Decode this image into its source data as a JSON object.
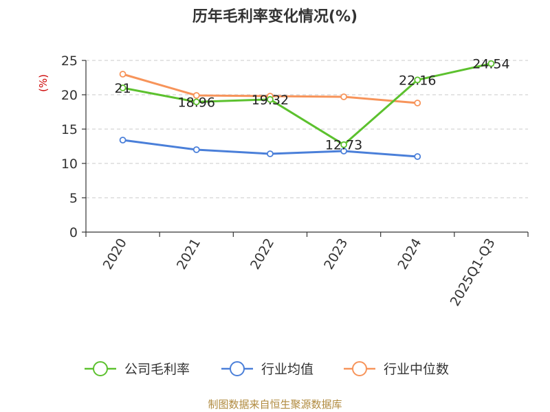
{
  "chart_data": {
    "type": "line",
    "title": "历年毛利率变化情况(%)",
    "ylabel": "(%)",
    "xlabel": "",
    "categories": [
      "2020",
      "2021",
      "2022",
      "2023",
      "2024",
      "2025Q1-Q3"
    ],
    "ylim": [
      0,
      25
    ],
    "yticks": [
      0,
      5,
      10,
      15,
      20,
      25
    ],
    "grid": true,
    "legend_position": "bottom",
    "series": [
      {
        "name": "公司毛利率",
        "color": "#5cc12e",
        "values": [
          21,
          18.96,
          19.32,
          12.73,
          22.16,
          24.54
        ],
        "labels": [
          "21",
          "18.96",
          "19.32",
          "12.73",
          "22.16",
          "24.54"
        ]
      },
      {
        "name": "行业均值",
        "color": "#4a7fd9",
        "values": [
          13.4,
          12.0,
          11.4,
          11.8,
          11.0,
          null
        ]
      },
      {
        "name": "行业中位数",
        "color": "#f7945a",
        "values": [
          23.0,
          19.9,
          19.8,
          19.7,
          18.8,
          null
        ]
      }
    ]
  },
  "footer": "制图数据来自恒生聚源数据库"
}
